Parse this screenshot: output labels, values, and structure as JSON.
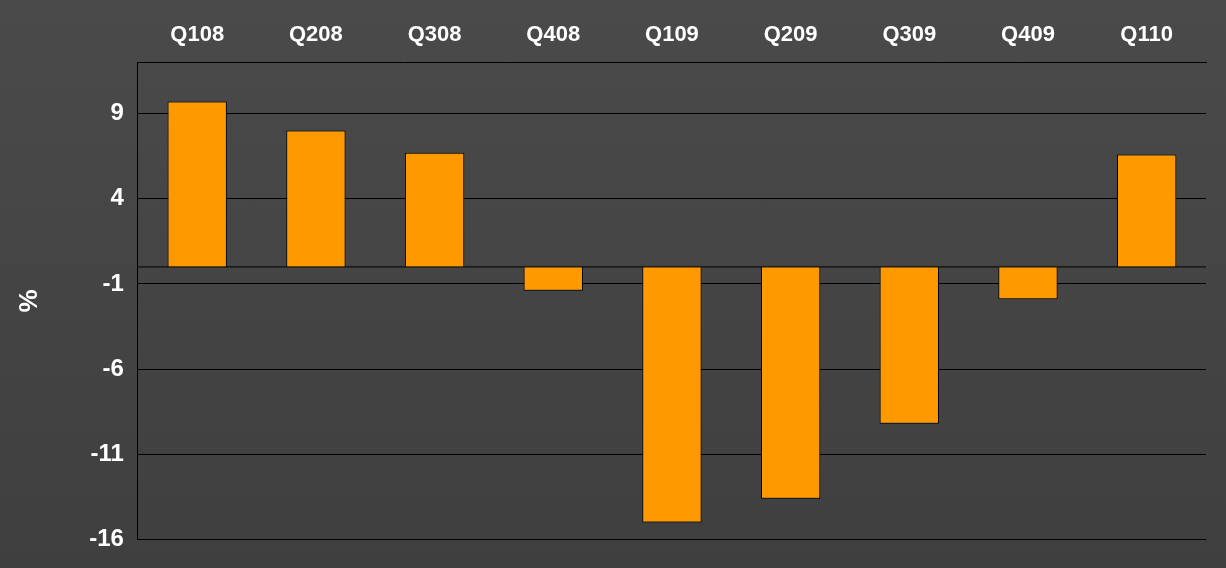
{
  "chart_data": {
    "type": "bar",
    "categories": [
      "Q108",
      "Q208",
      "Q308",
      "Q408",
      "Q109",
      "Q209",
      "Q309",
      "Q409",
      "Q110"
    ],
    "values": [
      9.7,
      8.0,
      6.7,
      -1.4,
      -15.0,
      -13.6,
      -9.2,
      -1.9,
      6.6
    ],
    "color": "#ff9900",
    "ylim": [
      -16,
      12
    ],
    "yticks": [
      9,
      4,
      -1,
      -6,
      -11,
      -16
    ],
    "grid": true,
    "y_label": "%"
  }
}
